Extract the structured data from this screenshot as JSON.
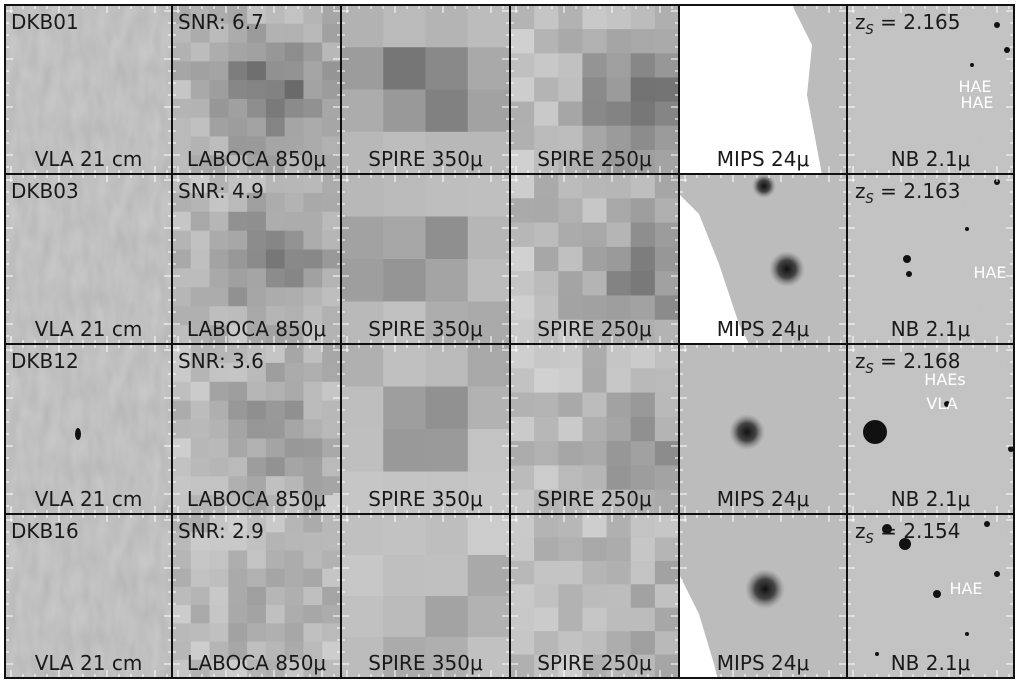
{
  "columns": [
    "VLA 21 cm",
    "LABOCA 850μ",
    "SPIRE 350μ",
    "SPIRE 250μ",
    "MIPS 24μ",
    "NB 2.1μ"
  ],
  "rows": [
    {
      "name": "DKB01",
      "snr": "SNR: 6.7",
      "z": {
        "base": "z",
        "sub": "S",
        "text": " = 2.165"
      },
      "annotations": [
        "HAE",
        "HAE"
      ]
    },
    {
      "name": "DKB03",
      "snr": "SNR: 4.9",
      "z": {
        "base": "z",
        "sub": "S",
        "text": " = 2.163"
      },
      "annotations": [
        "HAE"
      ]
    },
    {
      "name": "DKB12",
      "snr": "SNR: 3.6",
      "z": {
        "base": "z",
        "sub": "S",
        "text": " = 2.168"
      },
      "annotations": [
        "HAEs",
        "VLA"
      ]
    },
    {
      "name": "DKB16",
      "snr": "SNR: 2.9",
      "z": {
        "base": "z",
        "sub": "S",
        "text": " = 2.154"
      },
      "annotations": [
        "HAE"
      ]
    }
  ]
}
